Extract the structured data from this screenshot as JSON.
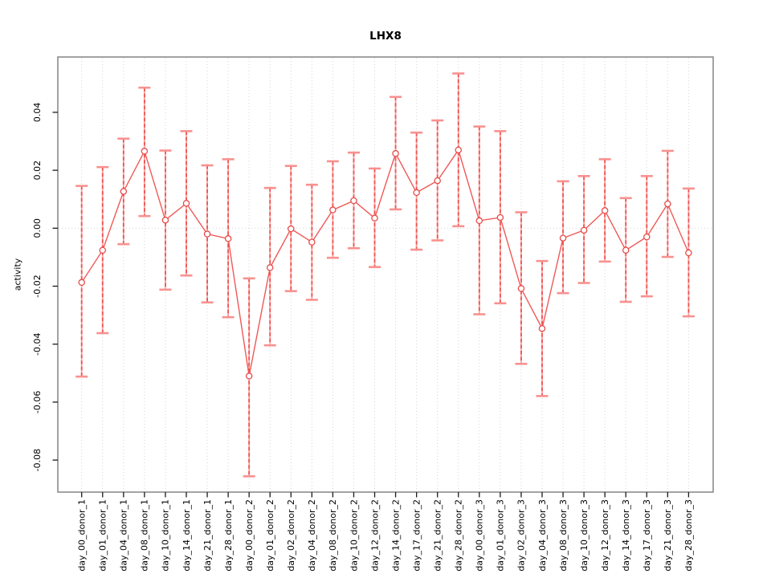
{
  "chart_data": {
    "type": "line",
    "title": "LHX8",
    "ylabel": "activity",
    "xlabel": "",
    "categories": [
      "day_00_donor_1",
      "day_01_donor_1",
      "day_04_donor_1",
      "day_08_donor_1",
      "day_10_donor_1",
      "day_14_donor_1",
      "day_21_donor_1",
      "day_28_donor_1",
      "day_00_donor_2",
      "day_01_donor_2",
      "day_02_donor_2",
      "day_04_donor_2",
      "day_08_donor_2",
      "day_10_donor_2",
      "day_12_donor_2",
      "day_14_donor_2",
      "day_17_donor_2",
      "day_21_donor_2",
      "day_28_donor_2",
      "day_00_donor_3",
      "day_01_donor_3",
      "day_02_donor_3",
      "day_04_donor_3",
      "day_08_donor_3",
      "day_10_donor_3",
      "day_12_donor_3",
      "day_14_donor_3",
      "day_17_donor_3",
      "day_21_donor_3",
      "day_28_donor_3"
    ],
    "series": [
      {
        "name": "activity",
        "values": [
          -0.0187,
          -0.0076,
          0.0127,
          0.0266,
          0.0028,
          0.0086,
          -0.002,
          -0.0036,
          -0.051,
          -0.0136,
          -0.0002,
          -0.0048,
          0.0063,
          0.0095,
          0.0035,
          0.0258,
          0.0123,
          0.0164,
          0.027,
          0.0026,
          0.0037,
          -0.0208,
          -0.0346,
          -0.0034,
          -0.0007,
          0.0061,
          -0.0076,
          -0.003,
          0.0084,
          -0.0085
        ],
        "err_low": [
          -0.0512,
          -0.0362,
          -0.0055,
          0.0042,
          -0.0212,
          -0.0163,
          -0.0256,
          -0.0307,
          -0.0856,
          -0.0404,
          -0.0217,
          -0.0247,
          -0.0102,
          -0.0069,
          -0.0134,
          0.0065,
          -0.0074,
          -0.0042,
          0.0007,
          -0.0297,
          -0.0259,
          -0.0468,
          -0.0579,
          -0.0224,
          -0.0189,
          -0.0115,
          -0.0254,
          -0.0235,
          -0.0099,
          -0.0304
        ],
        "err_high": [
          0.0146,
          0.0211,
          0.0309,
          0.0485,
          0.0268,
          0.0335,
          0.0217,
          0.0238,
          -0.0173,
          0.0139,
          0.0215,
          0.015,
          0.0231,
          0.0261,
          0.0206,
          0.0453,
          0.033,
          0.0372,
          0.0534,
          0.0351,
          0.0335,
          0.0055,
          -0.0113,
          0.0162,
          0.018,
          0.0238,
          0.0104,
          0.018,
          0.0267,
          0.0137
        ]
      }
    ],
    "ytick_labels": [
      "0.04",
      "0.02",
      "0.00",
      "-0.02",
      "-0.04",
      "-0.06",
      "-0.08"
    ],
    "yticks": [
      0.04,
      0.02,
      0.0,
      -0.02,
      -0.04,
      -0.06,
      -0.08
    ],
    "ylim": [
      -0.091,
      0.059
    ],
    "grid": {
      "vertical_dotted": true,
      "zero_line_dotted": true,
      "horizontal_lines": false
    },
    "legend": null,
    "colors": {
      "point": "#e74c4a",
      "series_line": "#ef5957",
      "errorbar_base": "#f9a3a1",
      "errorbar_dash": "#ee5351",
      "errorbar_cap": "#f8918f",
      "grid": "#d4d4d4",
      "box": "#8c8c8c",
      "tick": "#1a1a1a",
      "text": "#000000"
    }
  }
}
